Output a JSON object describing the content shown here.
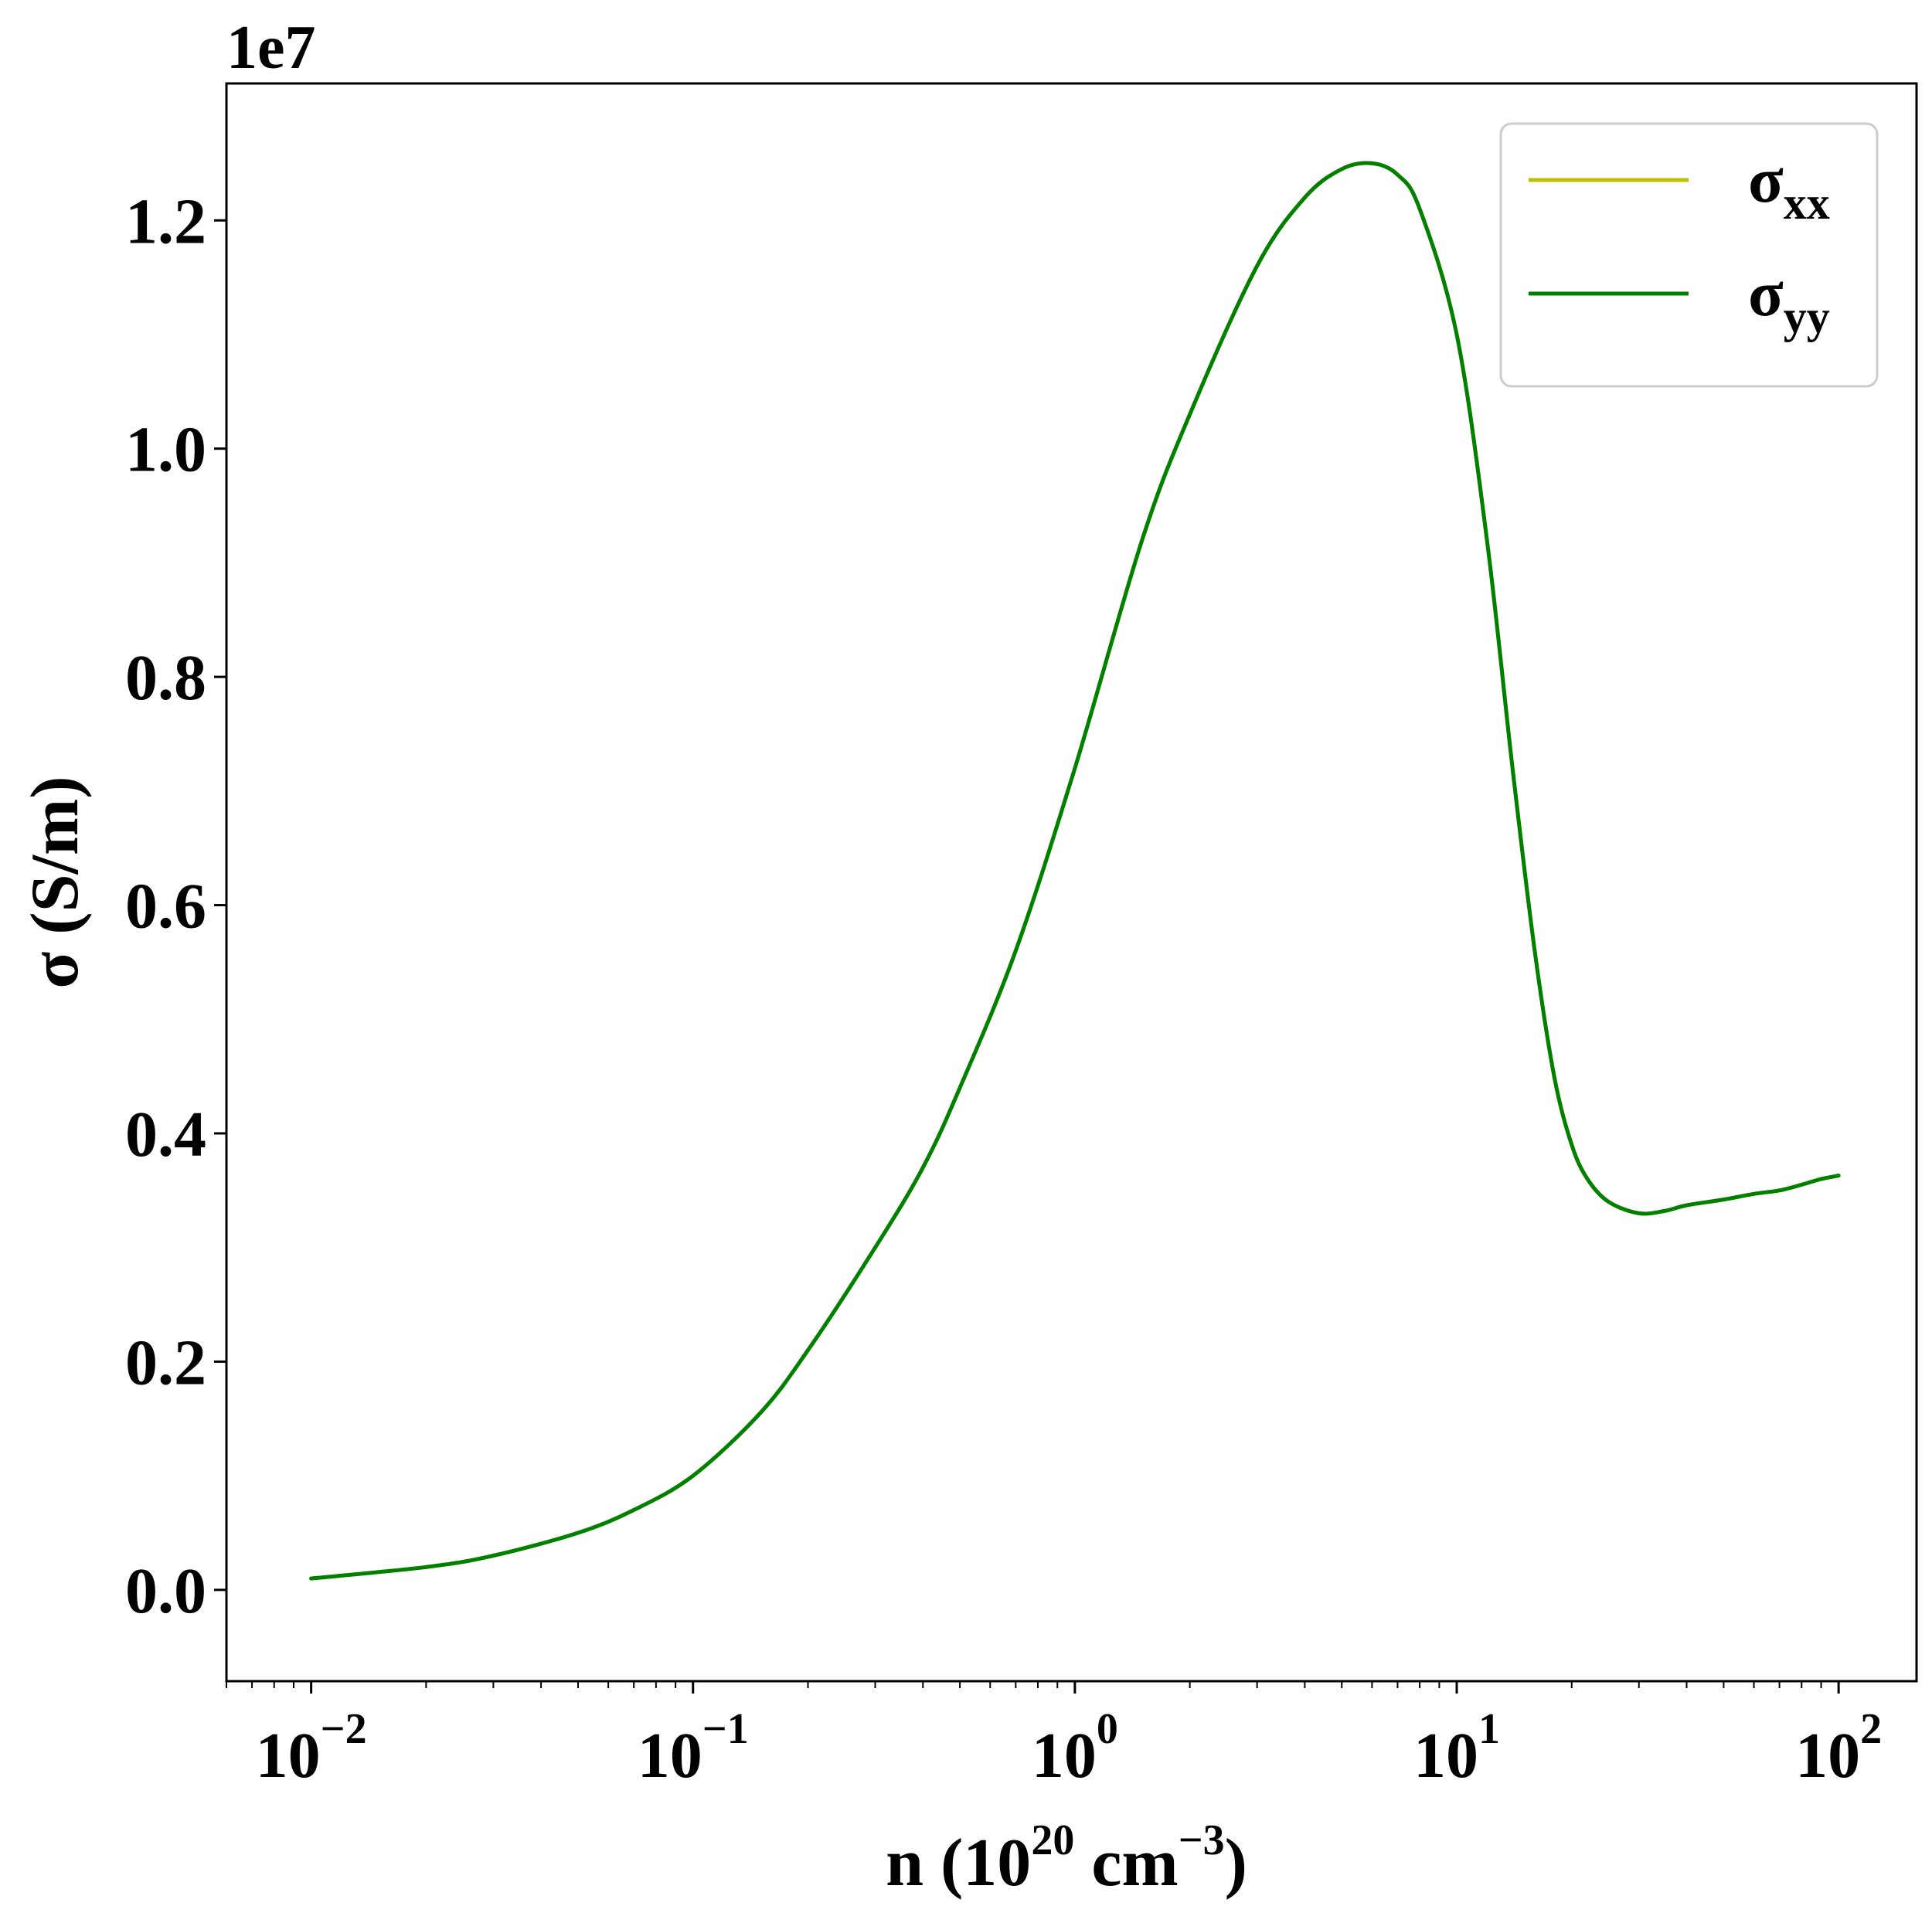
{
  "chart_data": {
    "type": "line",
    "xscale": "log",
    "xlim": [
      0.006,
      160
    ],
    "ylim": [
      -0.08,
      1.32
    ],
    "y_offset_label": "1e7",
    "xlabel": {
      "base": "n (10",
      "sup1": "20",
      "mid": " cm",
      "sup2": "−3",
      "end": ")"
    },
    "ylabel": "σ (S/m)",
    "grid": false,
    "legend_position": "top-right",
    "x_ticks": [
      {
        "value": 0.01,
        "base": "10",
        "exp": "−2"
      },
      {
        "value": 0.1,
        "base": "10",
        "exp": "−1"
      },
      {
        "value": 1,
        "base": "10",
        "exp": "0"
      },
      {
        "value": 10,
        "base": "10",
        "exp": "1"
      },
      {
        "value": 100,
        "base": "10",
        "exp": "2"
      }
    ],
    "y_ticks": [
      {
        "value": 0.0,
        "label": "0.0"
      },
      {
        "value": 0.2,
        "label": "0.2"
      },
      {
        "value": 0.4,
        "label": "0.4"
      },
      {
        "value": 0.6,
        "label": "0.6"
      },
      {
        "value": 0.8,
        "label": "0.8"
      },
      {
        "value": 1.0,
        "label": "1.0"
      },
      {
        "value": 1.2,
        "label": "1.2"
      }
    ],
    "series": [
      {
        "name": "σxx",
        "name_base": "σ",
        "name_sub": "xx",
        "color": "#bfbf00",
        "x": [
          0.01,
          0.02,
          0.03,
          0.05,
          0.07,
          0.1,
          0.15,
          0.2,
          0.3,
          0.4,
          0.5,
          0.7,
          1,
          1.5,
          2,
          3,
          4,
          5,
          6,
          7,
          8,
          10,
          12,
          14,
          16,
          18,
          20,
          22,
          25,
          30,
          35,
          40,
          50,
          60,
          70,
          80,
          90,
          100
        ],
        "y": [
          0.01,
          0.02,
          0.03,
          0.05,
          0.07,
          0.1,
          0.155,
          0.21,
          0.3,
          0.37,
          0.44,
          0.56,
          0.72,
          0.92,
          1.03,
          1.16,
          1.22,
          1.245,
          1.25,
          1.24,
          1.21,
          1.1,
          0.92,
          0.72,
          0.56,
          0.45,
          0.39,
          0.36,
          0.34,
          0.33,
          0.332,
          0.337,
          0.342,
          0.347,
          0.35,
          0.355,
          0.36,
          0.363
        ]
      },
      {
        "name": "σyy",
        "name_base": "σ",
        "name_sub": "yy",
        "color": "#008000",
        "x": [
          0.01,
          0.02,
          0.03,
          0.05,
          0.07,
          0.1,
          0.15,
          0.2,
          0.3,
          0.4,
          0.5,
          0.7,
          1,
          1.5,
          2,
          3,
          4,
          5,
          6,
          7,
          8,
          10,
          12,
          14,
          16,
          18,
          20,
          22,
          25,
          30,
          35,
          40,
          50,
          60,
          70,
          80,
          90,
          100
        ],
        "y": [
          0.01,
          0.02,
          0.03,
          0.05,
          0.07,
          0.1,
          0.155,
          0.21,
          0.3,
          0.37,
          0.44,
          0.56,
          0.72,
          0.92,
          1.03,
          1.16,
          1.22,
          1.245,
          1.25,
          1.24,
          1.21,
          1.1,
          0.92,
          0.72,
          0.56,
          0.45,
          0.39,
          0.36,
          0.34,
          0.33,
          0.332,
          0.337,
          0.342,
          0.347,
          0.35,
          0.355,
          0.36,
          0.363
        ]
      }
    ]
  }
}
